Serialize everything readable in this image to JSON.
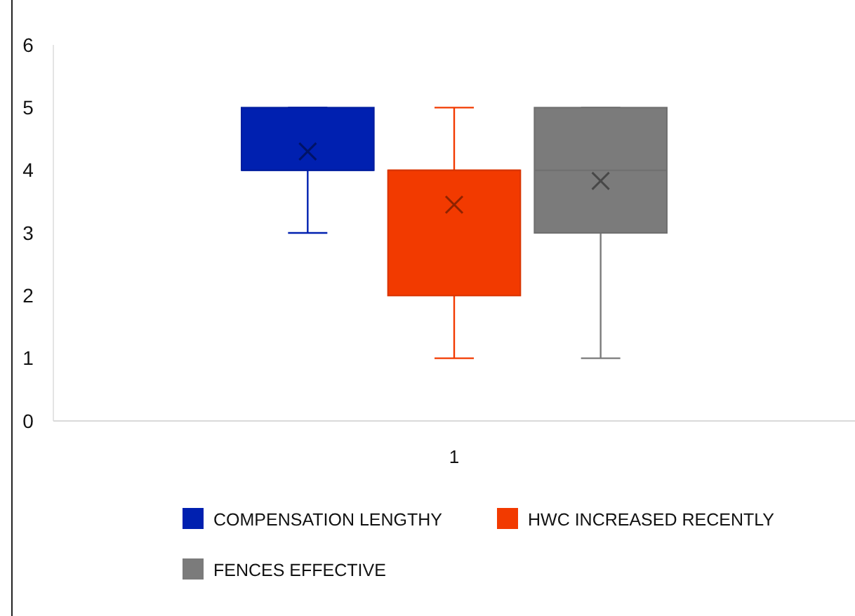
{
  "chart_data": {
    "type": "box",
    "categories": [
      "1"
    ],
    "ylim": [
      0,
      6
    ],
    "yticks": [
      0,
      1,
      2,
      3,
      4,
      5,
      6
    ],
    "grid": false,
    "legend": "bottom",
    "series": [
      {
        "name": "COMPENSATION LENGTHY",
        "color": "#0020b0",
        "boxes": [
          {
            "low": 3,
            "q1": 4,
            "median": 4,
            "q3": 5,
            "high": 5,
            "mean": 4.3
          }
        ]
      },
      {
        "name": "HWC INCREASED RECENTLY",
        "color": "#f23a00",
        "boxes": [
          {
            "low": 1,
            "q1": 2,
            "median": 4,
            "q3": 4,
            "high": 5,
            "mean": 3.45
          }
        ]
      },
      {
        "name": "FENCES EFFECTIVE",
        "color": "#7b7b7b",
        "boxes": [
          {
            "low": 1,
            "q1": 3,
            "median": 4,
            "q3": 5,
            "high": 5,
            "mean": 3.83
          }
        ]
      }
    ]
  }
}
